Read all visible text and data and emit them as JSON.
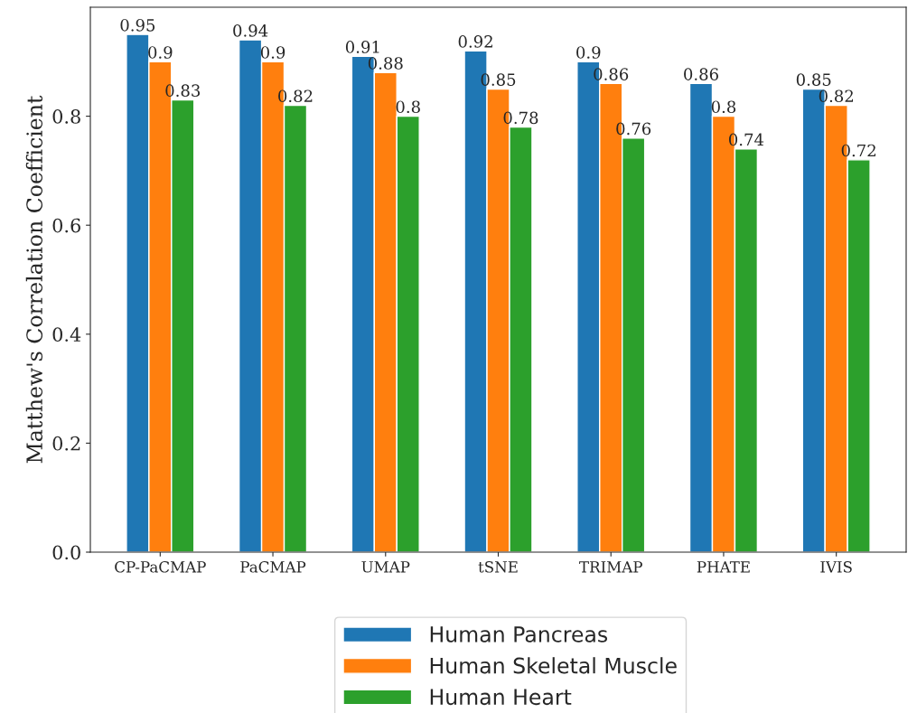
{
  "chart_data": {
    "type": "bar",
    "ylabel": "Matthew's Correlation Coefficient",
    "categories": [
      "CP-PaCMAP",
      "PaCMAP",
      "UMAP",
      "tSNE",
      "TRIMAP",
      "PHATE",
      "IVIS"
    ],
    "series": [
      {
        "name": "Human Pancreas",
        "color": "#1f77b4",
        "values": [
          0.95,
          0.94,
          0.91,
          0.92,
          0.9,
          0.86,
          0.85
        ]
      },
      {
        "name": "Human Skeletal Muscle",
        "color": "#ff7f0e",
        "values": [
          0.9,
          0.9,
          0.88,
          0.85,
          0.86,
          0.8,
          0.82
        ]
      },
      {
        "name": "Human Heart",
        "color": "#2ca02c",
        "values": [
          0.83,
          0.82,
          0.8,
          0.78,
          0.76,
          0.74,
          0.72
        ]
      }
    ],
    "ylim": [
      0,
      1.0
    ],
    "yticks": [
      {
        "value": 0,
        "label": "0.0"
      },
      0.2,
      0.4,
      0.6,
      0.8
    ],
    "data_labels": true,
    "legend": "bottom",
    "grid": false
  }
}
